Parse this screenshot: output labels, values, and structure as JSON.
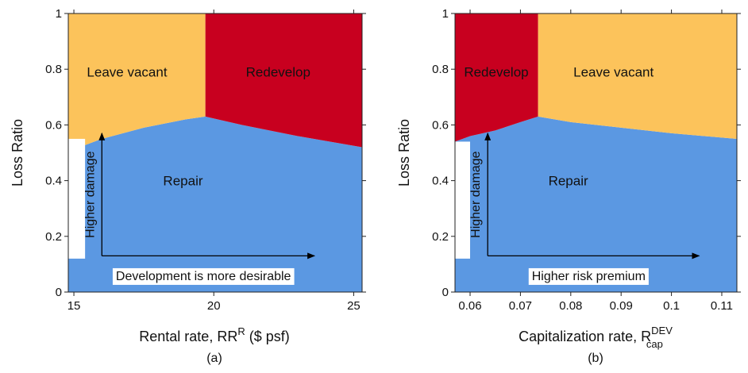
{
  "chart_data": [
    {
      "type": "area",
      "panel_label": "(a)",
      "xlabel": {
        "text": "Rental rate, RR",
        "sup": "R",
        "tail": " ($ psf)"
      },
      "ylabel": "Loss Ratio",
      "xlim": [
        14.8,
        25.3
      ],
      "ylim": [
        0,
        1
      ],
      "xticks": [
        15,
        20,
        25
      ],
      "yticks": [
        0,
        0.2,
        0.4,
        0.6,
        0.8,
        1
      ],
      "ytick_labels": [
        "0",
        "0.2",
        "0.4",
        "0.6",
        "0.8",
        "1"
      ],
      "x_switch": 19.7,
      "boundary": {
        "x": [
          14.8,
          15.2,
          16.0,
          17.5,
          19.0,
          19.7,
          21.0,
          23.0,
          25.3
        ],
        "y": [
          0.54,
          0.52,
          0.55,
          0.59,
          0.62,
          0.63,
          0.6,
          0.56,
          0.52
        ]
      },
      "white_patch": {
        "x": [
          14.8,
          15.4
        ],
        "y": [
          0.12,
          0.55
        ]
      },
      "regions": [
        {
          "name": "Repair",
          "color": "#5b98e2",
          "label_at": [
            18.9,
            0.4
          ]
        },
        {
          "name": "Leave vacant",
          "color": "#fcc35b",
          "label_at": [
            16.9,
            0.79
          ]
        },
        {
          "name": "Redevelop",
          "color": "#c8001f",
          "label_at": [
            22.3,
            0.79
          ]
        }
      ],
      "annotations": {
        "vertical": "Higher damage",
        "horizontal": "Development is more desirable",
        "arrow_x_from": 16.0,
        "arrow_x_to": 23.6,
        "arrow_y_from": 0.13,
        "arrow_y_to": 0.57
      }
    },
    {
      "type": "area",
      "panel_label": "(b)",
      "xlabel": {
        "text": "Capitalization rate, R",
        "sup": "DEV",
        "sub": "cap"
      },
      "ylabel": "Loss Ratio",
      "xlim": [
        0.057,
        0.113
      ],
      "ylim": [
        0,
        1
      ],
      "xticks": [
        0.06,
        0.07,
        0.08,
        0.09,
        0.1,
        0.11
      ],
      "xtick_labels": [
        "0.06",
        "0.07",
        "0.08",
        "0.09",
        "0.1",
        "0.11"
      ],
      "yticks": [
        0,
        0.2,
        0.4,
        0.6,
        0.8,
        1
      ],
      "ytick_labels": [
        "0",
        "0.2",
        "0.4",
        "0.6",
        "0.8",
        "1"
      ],
      "x_switch": 0.0735,
      "boundary": {
        "x": [
          0.057,
          0.06,
          0.065,
          0.07,
          0.0735,
          0.08,
          0.09,
          0.1,
          0.113
        ],
        "y": [
          0.54,
          0.56,
          0.58,
          0.61,
          0.63,
          0.61,
          0.59,
          0.57,
          0.55
        ]
      },
      "white_patch": {
        "x": [
          0.057,
          0.06
        ],
        "y": [
          0.12,
          0.54
        ]
      },
      "regions": [
        {
          "name": "Repair",
          "color": "#5b98e2",
          "label_at": [
            0.0795,
            0.4
          ]
        },
        {
          "name": "Leave vacant",
          "color": "#fcc35b",
          "label_at": [
            0.0885,
            0.79
          ]
        },
        {
          "name": "Redevelop",
          "color": "#c8001f",
          "label_at": [
            0.0652,
            0.79
          ]
        }
      ],
      "annotations": {
        "vertical": "Higher damage",
        "horizontal": "Higher risk premium",
        "arrow_x_from": 0.0635,
        "arrow_x_to": 0.1055,
        "arrow_y_from": 0.13,
        "arrow_y_to": 0.57
      }
    }
  ]
}
